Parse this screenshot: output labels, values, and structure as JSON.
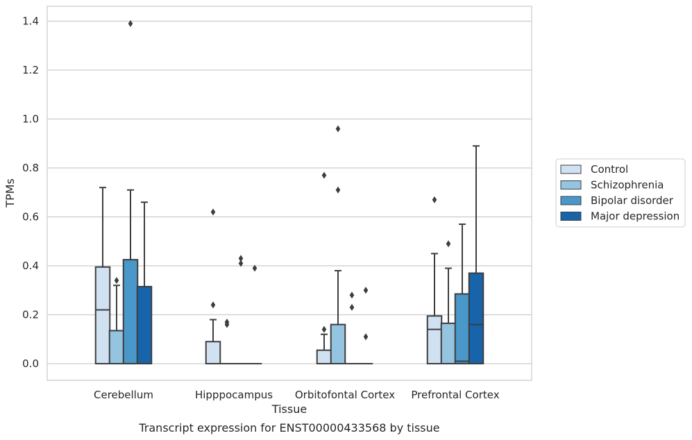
{
  "caption": "Transcript expression for ENST00000433568 by tissue",
  "chart_data": {
    "type": "box",
    "xlabel": "Tissue",
    "ylabel": "TPMs",
    "ylim": [
      -0.065,
      1.46
    ],
    "yticks": [
      "0.0",
      "0.2",
      "0.4",
      "0.6",
      "0.8",
      "1.0",
      "1.2",
      "1.4"
    ],
    "grid": true,
    "legend_position": "right",
    "categories": [
      "Cerebellum",
      "Hipppocampus",
      "Orbitofontal Cortex",
      "Prefrontal Cortex"
    ],
    "series": [
      {
        "name": "Control",
        "color": "#d0e1f2",
        "boxes": [
          {
            "whislo": 0,
            "q1": 0,
            "med": 0.22,
            "q3": 0.395,
            "whishi": 0.72,
            "fliers": []
          },
          {
            "whislo": 0,
            "q1": 0,
            "med": 0,
            "q3": 0.09,
            "whishi": 0.18,
            "fliers": [
              0.24,
              0.62
            ]
          },
          {
            "whislo": 0,
            "q1": 0,
            "med": 0,
            "q3": 0.055,
            "whishi": 0.12,
            "fliers": [
              0.14,
              0.77
            ]
          },
          {
            "whislo": 0,
            "q1": 0,
            "med": 0.14,
            "q3": 0.195,
            "whishi": 0.45,
            "fliers": [
              0.67
            ]
          }
        ]
      },
      {
        "name": "Schizophrenia",
        "color": "#94c4df",
        "boxes": [
          {
            "whislo": 0,
            "q1": 0,
            "med": 0,
            "q3": 0.135,
            "whishi": 0.32,
            "fliers": [
              0.34
            ]
          },
          {
            "whislo": 0,
            "q1": 0,
            "med": 0,
            "q3": 0,
            "whishi": 0,
            "fliers": [
              0.16,
              0.17
            ]
          },
          {
            "whislo": 0,
            "q1": 0,
            "med": 0,
            "q3": 0.16,
            "whishi": 0.38,
            "fliers": [
              0.71,
              0.96
            ]
          },
          {
            "whislo": 0,
            "q1": 0,
            "med": 0,
            "q3": 0.165,
            "whishi": 0.39,
            "fliers": [
              0.49
            ]
          }
        ]
      },
      {
        "name": "Bipolar disorder",
        "color": "#4a98c9",
        "boxes": [
          {
            "whislo": 0,
            "q1": 0,
            "med": 0,
            "q3": 0.425,
            "whishi": 0.71,
            "fliers": [
              1.39
            ]
          },
          {
            "whislo": 0,
            "q1": 0,
            "med": 0,
            "q3": 0,
            "whishi": 0,
            "fliers": [
              0.41,
              0.43
            ]
          },
          {
            "whislo": 0,
            "q1": 0,
            "med": 0,
            "q3": 0,
            "whishi": 0,
            "fliers": [
              0.23,
              0.28
            ]
          },
          {
            "whislo": 0,
            "q1": 0,
            "med": 0.01,
            "q3": 0.285,
            "whishi": 0.57,
            "fliers": []
          }
        ]
      },
      {
        "name": "Major depression",
        "color": "#1764ab",
        "boxes": [
          {
            "whislo": 0,
            "q1": 0,
            "med": 0,
            "q3": 0.315,
            "whishi": 0.66,
            "fliers": []
          },
          {
            "whislo": 0,
            "q1": 0,
            "med": 0,
            "q3": 0,
            "whishi": 0,
            "fliers": [
              0.39
            ]
          },
          {
            "whislo": 0,
            "q1": 0,
            "med": 0,
            "q3": 0,
            "whishi": 0,
            "fliers": [
              0.11,
              0.3
            ]
          },
          {
            "whislo": 0,
            "q1": 0,
            "med": 0.16,
            "q3": 0.37,
            "whishi": 0.89,
            "fliers": []
          }
        ]
      }
    ]
  }
}
